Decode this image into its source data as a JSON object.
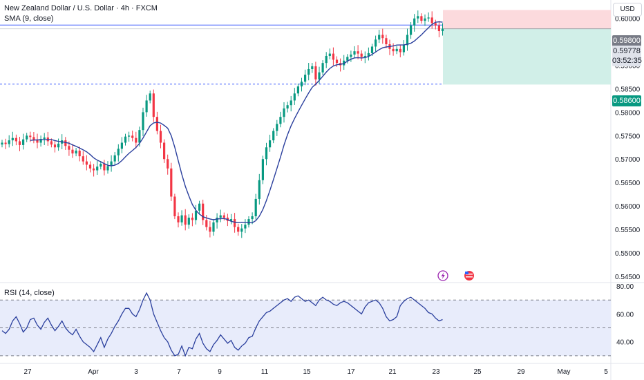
{
  "header": {
    "title": "New Zealand Dollar / U.S. Dollar · 4h · FXCM",
    "sma_label": "SMA (9, close)",
    "rsi_label": "RSI (14, close)",
    "currency_label": "USD"
  },
  "tags": {
    "target_price": "0.59800",
    "current_price": "0.59778",
    "countdown": "03:52:35",
    "stop_price": "0.58600"
  },
  "colors": {
    "up": "#089981",
    "down": "#f23645",
    "sma": "#2a3f9d",
    "rsi": "#2962ff",
    "position_profit": "#d1efe8",
    "position_loss": "#fcdadd",
    "hline": "#3d5afe"
  },
  "chart_data": [
    {
      "type": "candlestick",
      "symbol": "NZDUSD",
      "interval": "4h",
      "y_ticks": [
        0.545,
        0.55,
        0.555,
        0.56,
        0.565,
        0.57,
        0.575,
        0.58,
        0.585,
        0.59,
        0.595,
        0.6
      ],
      "y_tick_labels": [
        "0.54500",
        "0.55000",
        "0.55500",
        "0.56000",
        "0.56500",
        "0.57000",
        "0.57500",
        "0.58000",
        "0.58500",
        "0.59000",
        "0.59500",
        "0.60000"
      ],
      "ylim": [
        0.5438,
        0.6032
      ],
      "x_ticks": [
        "27",
        "Apr",
        "3",
        "7",
        "9",
        "11",
        "15",
        "17",
        "21",
        "23",
        "25",
        "29",
        "May",
        "5"
      ],
      "horizontal_lines": [
        0.5986,
        0.586
      ],
      "position": {
        "entry": 0.5978,
        "stop": 0.6018,
        "target": 0.5859
      },
      "sma_period": 9,
      "close": [
        0.5735,
        0.5732,
        0.574,
        0.5745,
        0.5738,
        0.573,
        0.5742,
        0.575,
        0.5747,
        0.5741,
        0.5735,
        0.5743,
        0.5746,
        0.5738,
        0.5731,
        0.5725,
        0.5733,
        0.574,
        0.5728,
        0.572,
        0.5712,
        0.5718,
        0.5706,
        0.5695,
        0.5688,
        0.568,
        0.5676,
        0.5684,
        0.569,
        0.5676,
        0.5685,
        0.5695,
        0.5708,
        0.5722,
        0.5735,
        0.5748,
        0.575,
        0.5745,
        0.5735,
        0.5762,
        0.58,
        0.5825,
        0.584,
        0.579,
        0.576,
        0.5735,
        0.57,
        0.568,
        0.562,
        0.5578,
        0.5565,
        0.558,
        0.556,
        0.5575,
        0.557,
        0.559,
        0.5605,
        0.557,
        0.5555,
        0.5545,
        0.5565,
        0.5575,
        0.558,
        0.5575,
        0.5568,
        0.5572,
        0.5555,
        0.5545,
        0.5552,
        0.556,
        0.5572,
        0.5578,
        0.5615,
        0.5655,
        0.57,
        0.5725,
        0.574,
        0.576,
        0.5775,
        0.579,
        0.5808,
        0.5815,
        0.5825,
        0.584,
        0.5855,
        0.5865,
        0.588,
        0.5892,
        0.5898,
        0.587,
        0.5885,
        0.5905,
        0.592,
        0.5925,
        0.5912,
        0.5905,
        0.59,
        0.591,
        0.5918,
        0.5923,
        0.593,
        0.5925,
        0.5918,
        0.592,
        0.5926,
        0.594,
        0.5955,
        0.5965,
        0.5958,
        0.5945,
        0.5935,
        0.593,
        0.5935,
        0.5928,
        0.5943,
        0.5965,
        0.5985,
        0.6,
        0.6005,
        0.5995,
        0.6,
        0.6002,
        0.599,
        0.5985,
        0.5973,
        0.5978
      ]
    },
    {
      "type": "line",
      "indicator": "RSI",
      "period": 14,
      "ylim": [
        25,
        82
      ],
      "y_ticks": [
        40,
        60,
        80
      ],
      "y_tick_labels": [
        "40.00",
        "60.00",
        "80.00"
      ],
      "bands": [
        30,
        50,
        70
      ],
      "values": [
        48,
        46,
        49,
        55,
        58,
        53,
        47,
        50,
        56,
        57,
        52,
        49,
        54,
        57,
        52,
        48,
        51,
        55,
        50,
        47,
        45,
        49,
        44,
        40,
        38,
        36,
        33,
        38,
        43,
        36,
        42,
        46,
        51,
        55,
        60,
        64,
        64,
        60,
        58,
        63,
        70,
        75,
        70,
        60,
        54,
        48,
        43,
        40,
        34,
        30,
        31,
        37,
        30,
        36,
        35,
        42,
        46,
        39,
        35,
        33,
        38,
        41,
        45,
        42,
        39,
        41,
        36,
        34,
        37,
        39,
        43,
        44,
        50,
        55,
        58,
        61,
        62,
        64,
        66,
        68,
        70,
        71,
        69,
        72,
        73,
        71,
        69,
        70,
        68,
        66,
        70,
        72,
        70,
        69,
        67,
        66,
        68,
        69,
        68,
        66,
        64,
        62,
        60,
        65,
        68,
        69,
        70,
        68,
        64,
        58,
        55,
        56,
        58,
        66,
        69,
        71,
        72,
        70,
        68,
        66,
        64,
        61,
        60,
        57,
        55,
        56
      ]
    }
  ]
}
